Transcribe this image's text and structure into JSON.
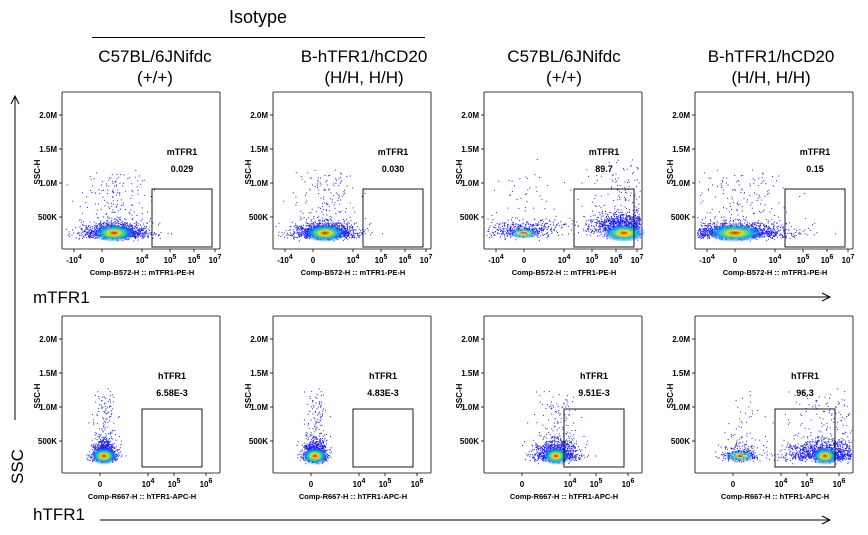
{
  "header": {
    "group_label": "Isotype",
    "columns": [
      {
        "line1": "C57BL/6JNifdc",
        "line2": "(+/+)"
      },
      {
        "line1": "B-hTFR1/hCD20",
        "line2": "(H/H, H/H)"
      },
      {
        "line1": "C57BL/6JNifdc",
        "line2": "(+/+)"
      },
      {
        "line1": "B-hTFR1/hCD20",
        "line2": "(H/H, H/H)"
      }
    ]
  },
  "axes": {
    "y_label": "SSC",
    "row1_label": "mTFR1",
    "row2_label": "hTFR1"
  },
  "chart_data": [
    {
      "type": "scatter",
      "row": 1,
      "col": 1,
      "gate_label": "mTFR1",
      "gate_value": "0.029",
      "y_axis_title": "SSC-H",
      "x_axis_title": "Comp-B572-H :: mTFR1-PE-H",
      "y_ticks": [
        "500K",
        "1.0M",
        "1.5M",
        "2.0M"
      ],
      "x_ticks": [
        "-10^4",
        "0",
        "10^4",
        "10^5",
        "10^6",
        "10^7"
      ],
      "population": "low",
      "gate": "mid"
    },
    {
      "type": "scatter",
      "row": 1,
      "col": 2,
      "gate_label": "mTFR1",
      "gate_value": "0.030",
      "y_axis_title": "SSC-H",
      "x_axis_title": "Comp-B572-H :: mTFR1-PE-H",
      "y_ticks": [
        "500K",
        "1.0M",
        "1.5M",
        "2.0M"
      ],
      "x_ticks": [
        "-10^4",
        "0",
        "10^4",
        "10^5",
        "10^6",
        "10^7"
      ],
      "population": "low",
      "gate": "mid"
    },
    {
      "type": "scatter",
      "row": 1,
      "col": 3,
      "gate_label": "mTFR1",
      "gate_value": "89.7",
      "y_axis_title": "SSC-H",
      "x_axis_title": "Comp-B572-H :: mTFR1-PE-H",
      "y_ticks": [
        "500K",
        "1.0M",
        "1.5M",
        "2.0M"
      ],
      "x_ticks": [
        "-10^4",
        "0",
        "10^4",
        "10^5",
        "10^6",
        "10^7"
      ],
      "population": "positive",
      "gate": "mid"
    },
    {
      "type": "scatter",
      "row": 1,
      "col": 4,
      "gate_label": "mTFR1",
      "gate_value": "0.15",
      "y_axis_title": "SSC-H",
      "x_axis_title": "Comp-B572-H :: mTFR1-PE-H",
      "y_ticks": [
        "500K",
        "1.0M",
        "1.5M",
        "2.0M"
      ],
      "x_ticks": [
        "-10^4",
        "0",
        "10^4",
        "10^5",
        "10^6",
        "10^7"
      ],
      "population": "wide",
      "gate": "mid"
    },
    {
      "type": "scatter",
      "row": 2,
      "col": 1,
      "gate_label": "hTFR1",
      "gate_value": "6.58E-3",
      "y_axis_title": "SSC-H",
      "x_axis_title": "Comp-R667-H :: hTFR1-APC-H",
      "y_ticks": [
        "500K",
        "1.0M",
        "1.5M",
        "2.0M"
      ],
      "x_ticks": [
        "0",
        "10^4",
        "10^5",
        "10^6"
      ],
      "population": "narrow",
      "gate": "high"
    },
    {
      "type": "scatter",
      "row": 2,
      "col": 2,
      "gate_label": "hTFR1",
      "gate_value": "4.83E-3",
      "y_axis_title": "SSC-H",
      "x_axis_title": "Comp-R667-H :: hTFR1-APC-H",
      "y_ticks": [
        "500K",
        "1.0M",
        "1.5M",
        "2.0M"
      ],
      "x_ticks": [
        "0",
        "10^4",
        "10^5",
        "10^6"
      ],
      "population": "narrow",
      "gate": "high"
    },
    {
      "type": "scatter",
      "row": 2,
      "col": 3,
      "gate_label": "hTFR1",
      "gate_value": "9.51E-3",
      "y_axis_title": "SSC-H",
      "x_axis_title": "Comp-R667-H :: hTFR1-APC-H",
      "y_ticks": [
        "500K",
        "1.0M",
        "1.5M",
        "2.0M"
      ],
      "x_ticks": [
        "0",
        "10^4",
        "10^5",
        "10^6"
      ],
      "population": "narrow",
      "gate": "high"
    },
    {
      "type": "scatter",
      "row": 2,
      "col": 4,
      "gate_label": "hTFR1",
      "gate_value": "96.3",
      "y_axis_title": "SSC-H",
      "x_axis_title": "Comp-R667-H :: hTFR1-APC-H",
      "y_ticks": [
        "500K",
        "1.0M",
        "1.5M",
        "2.0M"
      ],
      "x_ticks": [
        "0",
        "10^4",
        "10^5",
        "10^6"
      ],
      "population": "positive",
      "gate": "high"
    }
  ],
  "colors": {
    "dots": "#1a1aff",
    "mid": "#00b8d0",
    "warm": "#f0e000",
    "hot": "#e00000",
    "axis": "#000000"
  }
}
